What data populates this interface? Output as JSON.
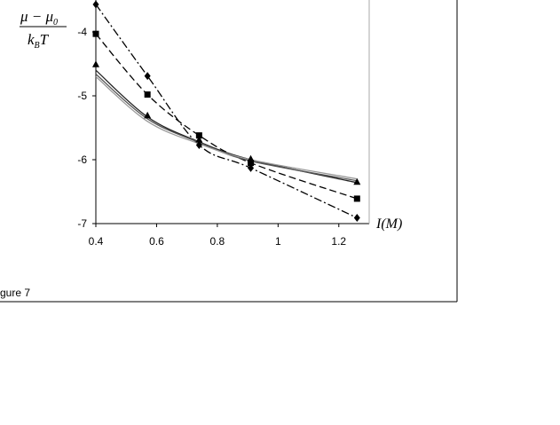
{
  "figure": {
    "caption": "gure 7"
  },
  "chart_data": {
    "type": "line",
    "title": "",
    "ylabel_fraction": {
      "numerator": "μ − μ",
      "numerator_sub": "0",
      "denominator": "k",
      "denominator_sub": "B",
      "denominator_tail": "T"
    },
    "xlabel": {
      "main": "I",
      "unit": "(M)"
    },
    "xlim": [
      0.4,
      1.3
    ],
    "ylim": [
      -7,
      -3.5
    ],
    "xticks": [
      0.4,
      0.6,
      0.8,
      1,
      1.2
    ],
    "xtick_labels": [
      "0.4",
      "0.6",
      "0.8",
      "1",
      "1.2"
    ],
    "yticks": [
      -4,
      -5,
      -6,
      -7
    ],
    "ytick_labels": [
      "-4",
      "-5",
      "-6",
      "-7"
    ],
    "grid": false,
    "series": [
      {
        "marker": "diamond",
        "line": "dash-dot",
        "color": "#000000",
        "x": [
          0.4,
          0.57,
          0.74,
          0.91,
          1.26
        ],
        "y": [
          -3.57,
          -4.69,
          -5.77,
          -6.13,
          -6.91
        ]
      },
      {
        "marker": "square",
        "line": "dashed",
        "color": "#000000",
        "x": [
          0.4,
          0.57,
          0.74,
          0.91,
          1.26
        ],
        "y": [
          -4.03,
          -4.98,
          -5.62,
          -6.05,
          -6.61
        ]
      },
      {
        "marker": "triangle",
        "line": "none",
        "color": "#000000",
        "x": [
          0.4,
          0.57,
          0.74,
          0.91,
          1.26
        ],
        "y": [
          -4.51,
          -5.31,
          -5.69,
          -5.99,
          -6.35
        ]
      },
      {
        "marker": "none",
        "line": "solid",
        "color": "#222222",
        "x": [
          0.4,
          0.57,
          0.74,
          0.91,
          1.26
        ],
        "y": [
          -4.6,
          -5.33,
          -5.72,
          -6.0,
          -6.36
        ]
      },
      {
        "marker": "none",
        "line": "solid",
        "color": "#555555",
        "x": [
          0.4,
          0.57,
          0.74,
          0.91,
          1.26
        ],
        "y": [
          -4.66,
          -5.36,
          -5.73,
          -6.02,
          -6.33
        ]
      },
      {
        "marker": "none",
        "line": "solid",
        "color": "#999999",
        "x": [
          0.4,
          0.57,
          0.74,
          0.91,
          1.26
        ],
        "y": [
          -4.7,
          -5.4,
          -5.75,
          -6.0,
          -6.3
        ]
      }
    ]
  }
}
